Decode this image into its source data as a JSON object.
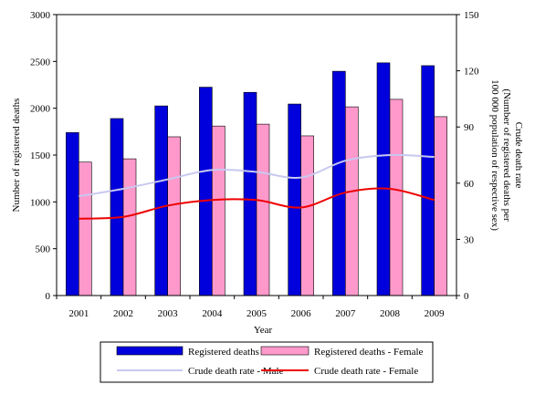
{
  "chart_data": {
    "type": "bar",
    "categories": [
      "2001",
      "2002",
      "2003",
      "2004",
      "2005",
      "2006",
      "2007",
      "2008",
      "2009"
    ],
    "xlabel": "Year",
    "ylabel_left": "Number of registered deaths",
    "ylabel_right_line1": "Crude death rate",
    "ylabel_right_line2": "(Number of registered deaths per",
    "ylabel_right_line3": "100 000 population of respective sex)",
    "ylim_left": [
      0,
      3000
    ],
    "yticks_left": [
      0,
      500,
      1000,
      1500,
      2000,
      2500,
      3000
    ],
    "ylim_right": [
      0,
      150
    ],
    "yticks_right": [
      0,
      30,
      60,
      90,
      120,
      150
    ],
    "grid": false,
    "legend_position": "bottom",
    "series": [
      {
        "name": "Registered deaths - Male",
        "kind": "bar",
        "axis": "left",
        "color": "#0000dd",
        "values": [
          1740,
          1890,
          2025,
          2225,
          2170,
          2045,
          2395,
          2485,
          2455
        ]
      },
      {
        "name": "Registered deaths - Female",
        "kind": "bar",
        "axis": "left",
        "color": "#ff99cc",
        "values": [
          1425,
          1460,
          1695,
          1810,
          1830,
          1705,
          2015,
          2095,
          1910
        ]
      },
      {
        "name": "Crude death rate - Male",
        "kind": "line",
        "axis": "right",
        "color": "#c8c8f0",
        "values": [
          53,
          57,
          62,
          67,
          66,
          63,
          72,
          75,
          74
        ]
      },
      {
        "name": "Crude death rate - Female",
        "kind": "line",
        "axis": "right",
        "color": "#ee0000",
        "values": [
          41,
          42,
          48,
          51,
          51,
          47,
          55,
          57,
          51
        ]
      }
    ]
  }
}
